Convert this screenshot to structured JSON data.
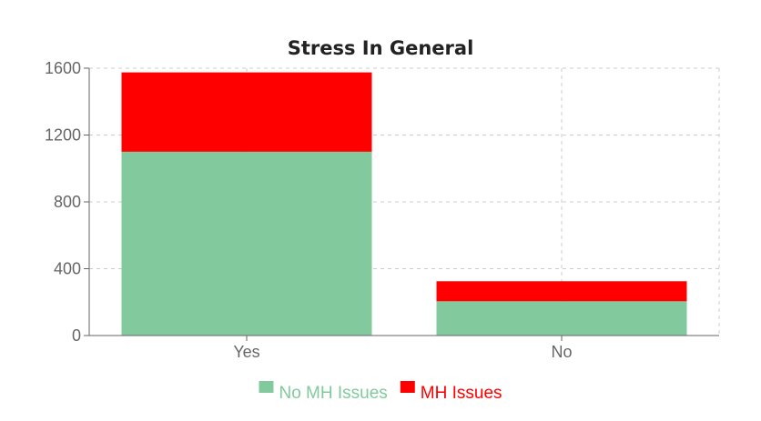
{
  "chart_data": {
    "type": "bar",
    "stacked": true,
    "title": "Stress In General",
    "categories": [
      "Yes",
      "No"
    ],
    "series": [
      {
        "name": "No MH Issues",
        "values": [
          1100,
          205
        ],
        "color": "#82ca9d"
      },
      {
        "name": "MH Issues",
        "values": [
          475,
          120
        ],
        "color": "#ff0000"
      }
    ],
    "yticks": [
      0,
      400,
      800,
      1200,
      1600
    ],
    "ylim": [
      0,
      1600
    ],
    "xlabel": "",
    "ylabel": "",
    "grid": true,
    "legend_position": "bottom"
  }
}
